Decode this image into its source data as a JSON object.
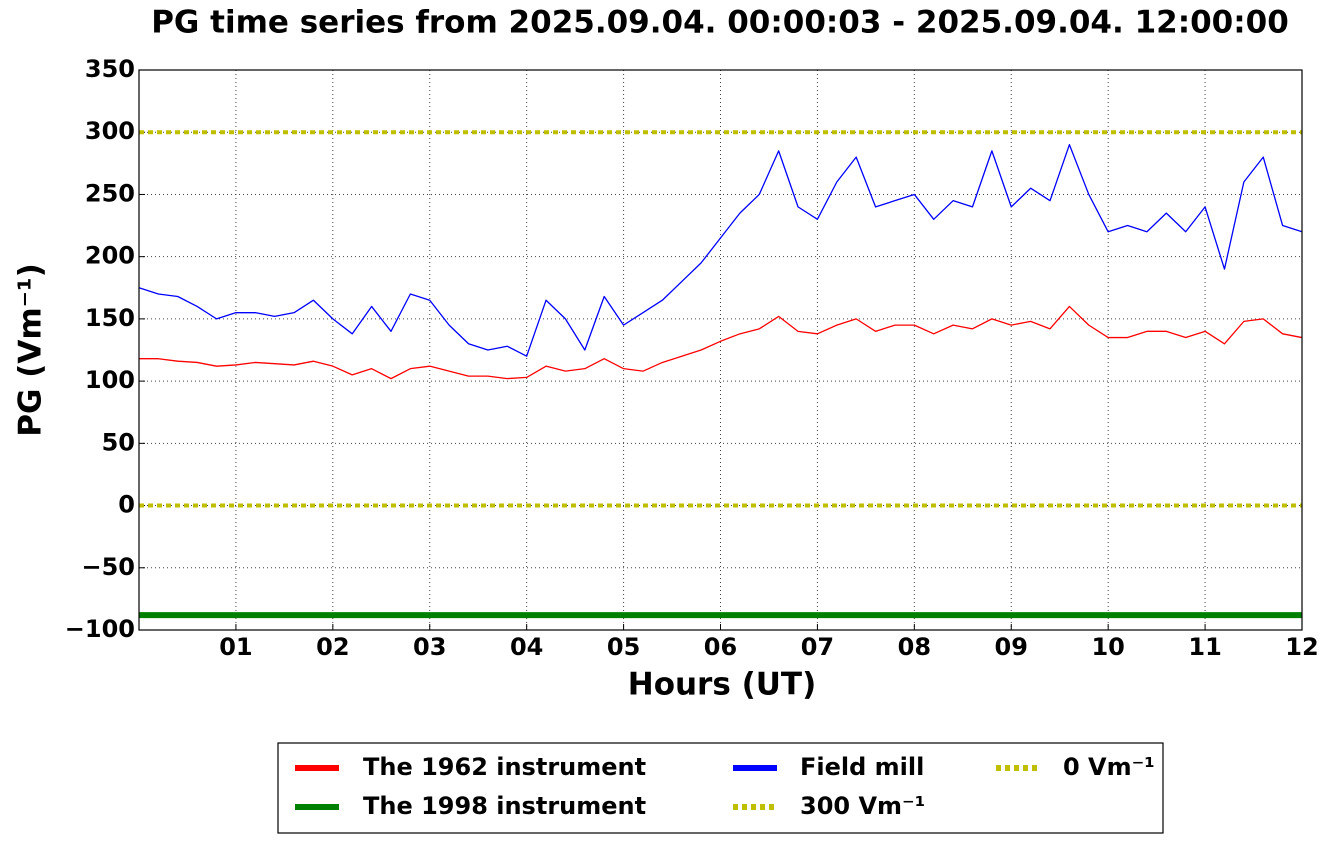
{
  "chart_data": {
    "type": "line",
    "title": "PG time series from 2025.09.04. 00:00:03 - 2025.09.04. 12:00:00",
    "x_label": "Hours (UT)",
    "y_label": "PG (Vm⁻¹)",
    "xlim": [
      0,
      12
    ],
    "ylim": [
      -100,
      350
    ],
    "xticks": [
      {
        "value": 1,
        "label": "01"
      },
      {
        "value": 2,
        "label": "02"
      },
      {
        "value": 3,
        "label": "03"
      },
      {
        "value": 4,
        "label": "04"
      },
      {
        "value": 5,
        "label": "05"
      },
      {
        "value": 6,
        "label": "06"
      },
      {
        "value": 7,
        "label": "07"
      },
      {
        "value": 8,
        "label": "08"
      },
      {
        "value": 9,
        "label": "09"
      },
      {
        "value": 10,
        "label": "10"
      },
      {
        "value": 11,
        "label": "11"
      },
      {
        "value": 12,
        "label": "12"
      }
    ],
    "yticks": [
      {
        "value": -100,
        "label": "−100"
      },
      {
        "value": -50,
        "label": "−50"
      },
      0,
      50,
      100,
      150,
      200,
      250,
      300,
      350
    ],
    "grid": true,
    "legend": "below",
    "x": [
      0,
      0.2,
      0.4,
      0.6,
      0.8,
      1,
      1.2,
      1.4,
      1.6,
      1.8,
      2,
      2.2,
      2.4,
      2.6,
      2.8,
      3,
      3.2,
      3.4,
      3.6,
      3.8,
      4,
      4.2,
      4.4,
      4.6,
      4.8,
      5,
      5.2,
      5.4,
      5.6,
      5.8,
      6,
      6.2,
      6.4,
      6.6,
      6.8,
      7,
      7.2,
      7.4,
      7.6,
      7.8,
      8,
      8.2,
      8.4,
      8.6,
      8.8,
      9,
      9.2,
      9.4,
      9.6,
      9.8,
      10,
      10.2,
      10.4,
      10.6,
      10.8,
      11,
      11.2,
      11.4,
      11.6,
      11.8,
      12
    ],
    "series": [
      {
        "name": "The 1962 instrument",
        "color": "#ff0000",
        "values": [
          118,
          118,
          116,
          115,
          112,
          113,
          115,
          114,
          113,
          116,
          112,
          105,
          110,
          102,
          110,
          112,
          108,
          104,
          104,
          102,
          103,
          112,
          108,
          110,
          118,
          110,
          108,
          115,
          120,
          125,
          132,
          138,
          142,
          152,
          140,
          138,
          145,
          150,
          140,
          145,
          145,
          138,
          145,
          142,
          150,
          145,
          148,
          142,
          160,
          145,
          135,
          135,
          140,
          140,
          135,
          140,
          130,
          148,
          150,
          138,
          135
        ]
      },
      {
        "name": "The 1998 instrument",
        "color": "#008000",
        "x": [
          0,
          12
        ],
        "values": [
          -88,
          -88
        ],
        "style": "thick"
      },
      {
        "name": "Field mill",
        "color": "#0000ff",
        "values": [
          175,
          170,
          168,
          160,
          150,
          155,
          155,
          152,
          155,
          165,
          150,
          138,
          160,
          140,
          170,
          165,
          145,
          130,
          125,
          128,
          120,
          165,
          150,
          125,
          168,
          145,
          155,
          165,
          180,
          195,
          215,
          235,
          250,
          285,
          240,
          230,
          260,
          280,
          240,
          245,
          250,
          230,
          245,
          240,
          285,
          240,
          255,
          245,
          290,
          250,
          220,
          225,
          220,
          235,
          220,
          240,
          190,
          260,
          280,
          225,
          220
        ]
      },
      {
        "name": "300 Vm⁻¹",
        "color": "#bfbf00",
        "x": [
          0,
          12
        ],
        "values": [
          300,
          300
        ],
        "style": "dotted"
      },
      {
        "name": "0 Vm⁻¹",
        "color": "#bfbf00",
        "x": [
          0,
          12
        ],
        "values": [
          0,
          0
        ],
        "style": "dotted"
      }
    ]
  }
}
